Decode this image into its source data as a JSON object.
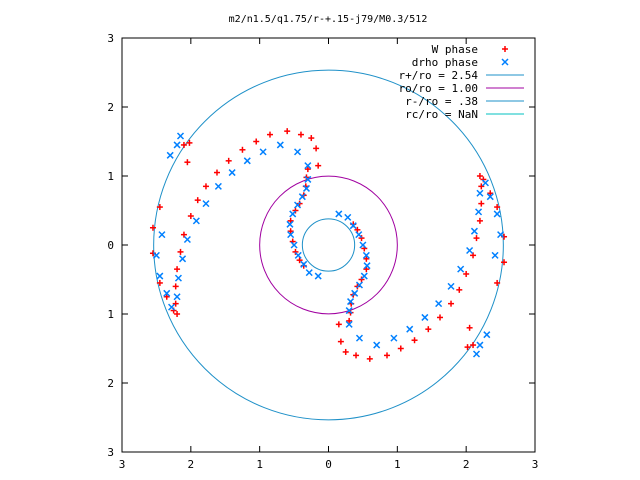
{
  "chart_data": {
    "type": "scatter",
    "title": "m2/n1.5/q1.75/r-+.15-j79/M0.3/512",
    "xlim": [
      -3,
      3
    ],
    "ylim": [
      -3,
      3
    ],
    "x_tick_labels": [
      "3",
      "2",
      "1",
      "0",
      "1",
      "2",
      "3"
    ],
    "y_tick_labels": [
      "3",
      "2",
      "1",
      "0",
      "1",
      "2",
      "3"
    ],
    "x_ticks": [
      -3,
      -2,
      -1,
      0,
      1,
      2,
      3
    ],
    "y_ticks": [
      3,
      2,
      1,
      0,
      -1,
      -2,
      -3
    ],
    "grid": false,
    "legend_position": "top-right",
    "series": [
      {
        "name": "W phase",
        "marker": "+",
        "color": "#ff0000",
        "points": [
          [
            -0.3,
            1.1
          ],
          [
            -0.32,
            0.98
          ],
          [
            -0.33,
            0.85
          ],
          [
            -0.36,
            0.72
          ],
          [
            -0.42,
            0.6
          ],
          [
            -0.48,
            0.5
          ],
          [
            -0.55,
            0.35
          ],
          [
            -0.55,
            0.2
          ],
          [
            -0.52,
            0.05
          ],
          [
            -0.48,
            -0.1
          ],
          [
            -0.42,
            -0.22
          ],
          [
            -0.36,
            -0.3
          ],
          [
            -0.15,
            1.15
          ],
          [
            -0.18,
            1.4
          ],
          [
            -0.25,
            1.55
          ],
          [
            -0.4,
            1.6
          ],
          [
            -0.6,
            1.65
          ],
          [
            -0.85,
            1.6
          ],
          [
            -1.05,
            1.5
          ],
          [
            -1.25,
            1.38
          ],
          [
            -1.45,
            1.22
          ],
          [
            -1.62,
            1.05
          ],
          [
            -1.78,
            0.85
          ],
          [
            -1.9,
            0.65
          ],
          [
            -2.0,
            0.42
          ],
          [
            -2.1,
            0.15
          ],
          [
            -2.15,
            -0.1
          ],
          [
            -2.2,
            -0.35
          ],
          [
            -2.22,
            -0.6
          ],
          [
            -2.22,
            -0.85
          ],
          [
            -2.2,
            -1.0
          ],
          [
            -2.45,
            0.55
          ],
          [
            -2.55,
            0.25
          ],
          [
            -2.55,
            -0.12
          ],
          [
            -2.45,
            -0.55
          ],
          [
            -2.35,
            -0.75
          ],
          [
            -2.25,
            -0.95
          ],
          [
            -2.05,
            1.2
          ],
          [
            -2.1,
            1.45
          ],
          [
            -2.02,
            1.48
          ],
          [
            0.3,
            -1.1
          ],
          [
            0.32,
            -0.98
          ],
          [
            0.33,
            -0.85
          ],
          [
            0.36,
            -0.72
          ],
          [
            0.42,
            -0.6
          ],
          [
            0.48,
            -0.5
          ],
          [
            0.55,
            -0.35
          ],
          [
            0.55,
            -0.2
          ],
          [
            0.52,
            -0.05
          ],
          [
            0.48,
            0.1
          ],
          [
            0.42,
            0.22
          ],
          [
            0.36,
            0.3
          ],
          [
            0.15,
            -1.15
          ],
          [
            0.18,
            -1.4
          ],
          [
            0.25,
            -1.55
          ],
          [
            0.4,
            -1.6
          ],
          [
            0.6,
            -1.65
          ],
          [
            0.85,
            -1.6
          ],
          [
            1.05,
            -1.5
          ],
          [
            1.25,
            -1.38
          ],
          [
            1.45,
            -1.22
          ],
          [
            1.62,
            -1.05
          ],
          [
            1.78,
            -0.85
          ],
          [
            1.9,
            -0.65
          ],
          [
            2.0,
            -0.42
          ],
          [
            2.1,
            -0.15
          ],
          [
            2.15,
            0.1
          ],
          [
            2.2,
            0.35
          ],
          [
            2.22,
            0.6
          ],
          [
            2.22,
            0.85
          ],
          [
            2.2,
            1.0
          ],
          [
            2.45,
            -0.55
          ],
          [
            2.55,
            -0.25
          ],
          [
            2.55,
            0.12
          ],
          [
            2.45,
            0.55
          ],
          [
            2.35,
            0.75
          ],
          [
            2.25,
            0.95
          ],
          [
            2.05,
            -1.2
          ],
          [
            2.1,
            -1.45
          ],
          [
            2.02,
            -1.48
          ]
        ]
      },
      {
        "name": "drho phase",
        "marker": "x",
        "color": "#0080ff",
        "points": [
          [
            -0.3,
            0.95
          ],
          [
            -0.32,
            0.82
          ],
          [
            -0.38,
            0.7
          ],
          [
            -0.45,
            0.58
          ],
          [
            -0.52,
            0.45
          ],
          [
            -0.56,
            0.3
          ],
          [
            -0.55,
            0.15
          ],
          [
            -0.5,
            0.0
          ],
          [
            -0.44,
            -0.15
          ],
          [
            -0.36,
            -0.28
          ],
          [
            -0.28,
            -0.4
          ],
          [
            -0.15,
            -0.45
          ],
          [
            -0.3,
            1.15
          ],
          [
            -0.45,
            1.35
          ],
          [
            -0.7,
            1.45
          ],
          [
            -0.95,
            1.35
          ],
          [
            -1.18,
            1.22
          ],
          [
            -1.4,
            1.05
          ],
          [
            -1.6,
            0.85
          ],
          [
            -1.78,
            0.6
          ],
          [
            -1.92,
            0.35
          ],
          [
            -2.05,
            0.08
          ],
          [
            -2.12,
            -0.2
          ],
          [
            -2.18,
            -0.48
          ],
          [
            -2.2,
            -0.75
          ],
          [
            -2.5,
            -0.15
          ],
          [
            -2.45,
            -0.45
          ],
          [
            -2.35,
            -0.7
          ],
          [
            -2.28,
            -0.9
          ],
          [
            -2.42,
            0.15
          ],
          [
            -2.3,
            1.3
          ],
          [
            -2.2,
            1.45
          ],
          [
            -2.15,
            1.58
          ],
          [
            0.3,
            -0.95
          ],
          [
            0.32,
            -0.82
          ],
          [
            0.38,
            -0.7
          ],
          [
            0.45,
            -0.58
          ],
          [
            0.52,
            -0.45
          ],
          [
            0.56,
            -0.3
          ],
          [
            0.55,
            -0.15
          ],
          [
            0.5,
            0.0
          ],
          [
            0.44,
            0.15
          ],
          [
            0.36,
            0.28
          ],
          [
            0.28,
            0.4
          ],
          [
            0.15,
            0.45
          ],
          [
            0.3,
            -1.15
          ],
          [
            0.45,
            -1.35
          ],
          [
            0.7,
            -1.45
          ],
          [
            0.95,
            -1.35
          ],
          [
            1.18,
            -1.22
          ],
          [
            1.4,
            -1.05
          ],
          [
            1.6,
            -0.85
          ],
          [
            1.78,
            -0.6
          ],
          [
            1.92,
            -0.35
          ],
          [
            2.05,
            -0.08
          ],
          [
            2.12,
            0.2
          ],
          [
            2.18,
            0.48
          ],
          [
            2.2,
            0.75
          ],
          [
            2.5,
            0.15
          ],
          [
            2.45,
            0.45
          ],
          [
            2.35,
            0.7
          ],
          [
            2.28,
            0.9
          ],
          [
            2.42,
            -0.15
          ],
          [
            2.3,
            -1.3
          ],
          [
            2.2,
            -1.45
          ],
          [
            2.15,
            -1.58
          ]
        ]
      },
      {
        "name": "r+/ro = 2.54",
        "type": "circle",
        "radius": 2.54,
        "color": "#1e90c8"
      },
      {
        "name": "ro/ro = 1.00",
        "type": "circle",
        "radius": 1.0,
        "color": "#a000a0"
      },
      {
        "name": "r-/ro = .38",
        "type": "circle",
        "radius": 0.38,
        "color": "#1e90c8"
      },
      {
        "name": "rc/ro = NaN",
        "type": "circle",
        "radius": null,
        "color": "#00c0c0"
      }
    ]
  }
}
